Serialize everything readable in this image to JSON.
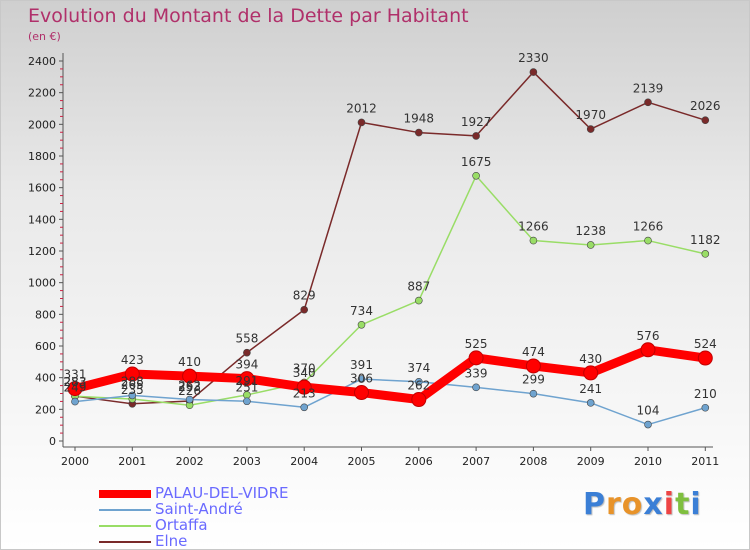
{
  "chart_data": {
    "type": "line",
    "title": "Evolution du Montant de la Dette par Habitant",
    "subtitle": "(en €)",
    "xlabel": "",
    "ylabel": "",
    "categories": [
      "2000",
      "2001",
      "2002",
      "2003",
      "2004",
      "2005",
      "2006",
      "2007",
      "2008",
      "2009",
      "2010",
      "2011"
    ],
    "yticks": [
      "0",
      "200",
      "400",
      "600",
      "800",
      "1000",
      "1200",
      "1400",
      "1600",
      "1800",
      "2000",
      "2200",
      "2400"
    ],
    "ylim": [
      0,
      2400
    ],
    "grid": false,
    "legend_position": "bottom-left",
    "series": [
      {
        "name": "PALAU-DEL-VIDRE",
        "color": "#ff0000",
        "values": [
          331,
          423,
          410,
          394,
          340,
          306,
          262,
          525,
          474,
          430,
          576,
          524
        ],
        "labels": [
          "331",
          "423",
          "410",
          "394",
          "340",
          "306",
          "262",
          "525",
          "474",
          "430",
          "576",
          "524"
        ]
      },
      {
        "name": "Saint-André",
        "color": "#6fa3cf",
        "values": [
          249,
          288,
          262,
          251,
          213,
          391,
          374,
          339,
          299,
          241,
          104,
          210
        ],
        "labels": [
          "249",
          "288",
          "262",
          "251",
          "213",
          "391",
          "374",
          "339",
          "299",
          "241",
          "104",
          "210"
        ]
      },
      {
        "name": "Ortaffa",
        "color": "#99dd66",
        "values": [
          283,
          265,
          226,
          291,
          370,
          734,
          887,
          1675,
          1266,
          1238,
          1266,
          1182
        ],
        "labels": [
          "283",
          "265",
          "226",
          "291",
          "370",
          "734",
          "887",
          "1675",
          "1266",
          "1238",
          "1266",
          "1182"
        ]
      },
      {
        "name": "Elne",
        "color": "#7a2a2a",
        "values": [
          283,
          235,
          253,
          558,
          829,
          2012,
          1948,
          1927,
          2330,
          1970,
          2139,
          2026
        ],
        "labels": [
          "283",
          "235",
          "253",
          "558",
          "829",
          "2012",
          "1948",
          "1927",
          "2330",
          "1970",
          "2139",
          "2026"
        ]
      }
    ]
  },
  "legend": {
    "items": [
      {
        "label": "PALAU-DEL-VIDRE",
        "color": "#ff0000",
        "text_color": "#6a6aff"
      },
      {
        "label": "Saint-André",
        "color": "#6fa3cf",
        "text_color": "#6a6aff"
      },
      {
        "label": "Ortaffa",
        "color": "#99dd66",
        "text_color": "#6a6aff"
      },
      {
        "label": "Elne",
        "color": "#7a2a2a",
        "text_color": "#6a6aff"
      }
    ]
  },
  "logo": {
    "text": "Proxiti",
    "letter_colors": [
      "#3b7fd6",
      "#e8932a",
      "#e8932a",
      "#3b7fd6",
      "#ee4444",
      "#7fbf3f",
      "#3b7fd6"
    ]
  }
}
